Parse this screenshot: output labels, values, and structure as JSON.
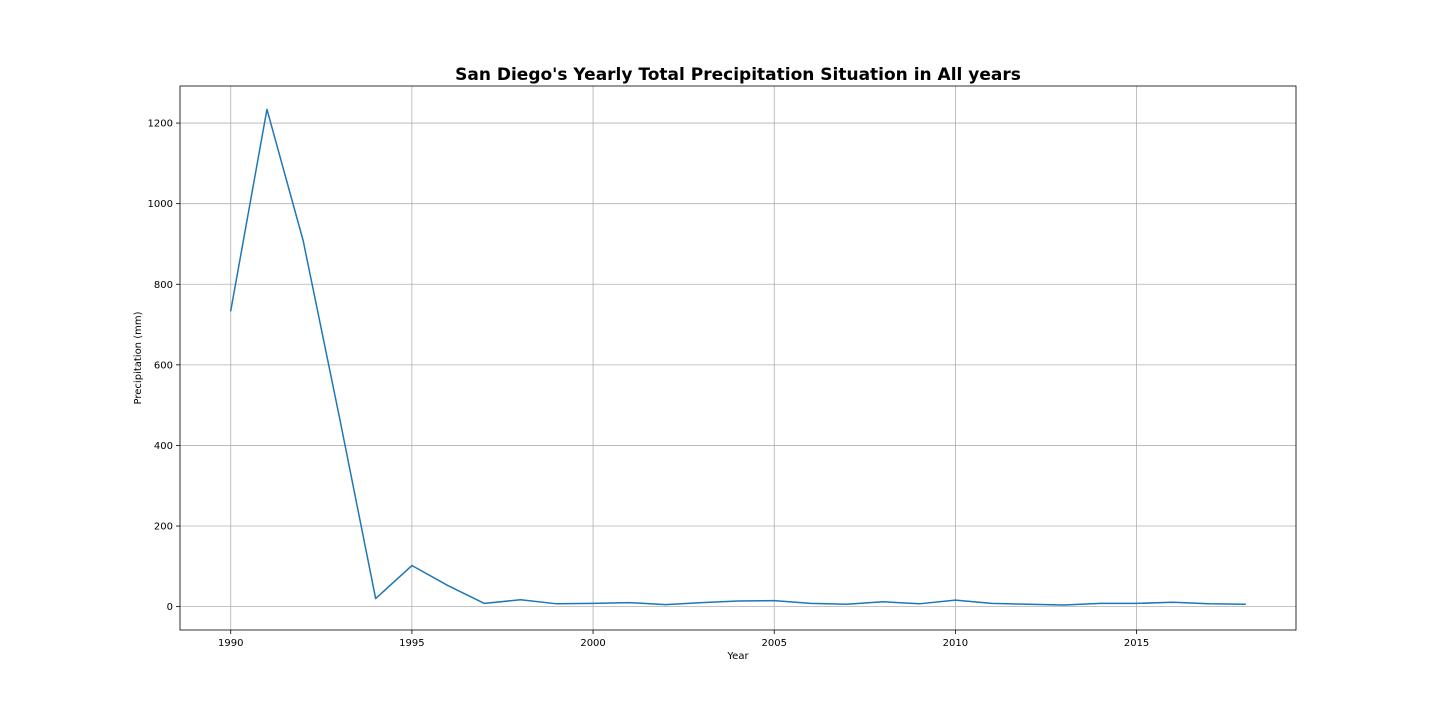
{
  "chart_data": {
    "type": "line",
    "title": "San Diego's Yearly Total Precipitation Situation in All years",
    "xlabel": "Year",
    "ylabel": "Precipitation (mm)",
    "grid": true,
    "legend": "none",
    "xlim": [
      1988.6,
      2019.4
    ],
    "ylim": [
      -58,
      1292
    ],
    "x_ticks": [
      1990,
      1995,
      2000,
      2005,
      2010,
      2015
    ],
    "y_ticks": [
      0,
      200,
      400,
      600,
      800,
      1000,
      1200
    ],
    "series": [
      {
        "color": "#1f77b4",
        "x": [
          1990,
          1991,
          1992,
          1993,
          1994,
          1995,
          1996,
          1997,
          1998,
          1999,
          2000,
          2001,
          2002,
          2003,
          2004,
          2005,
          2006,
          2007,
          2008,
          2009,
          2010,
          2011,
          2012,
          2013,
          2014,
          2015,
          2016,
          2017,
          2018
        ],
        "values": [
          734,
          1234,
          908,
          470,
          20,
          102,
          52,
          8,
          17,
          7,
          8,
          10,
          5,
          10,
          14,
          15,
          8,
          6,
          12,
          7,
          16,
          8,
          6,
          4,
          8,
          8,
          11,
          7,
          6
        ]
      }
    ]
  }
}
